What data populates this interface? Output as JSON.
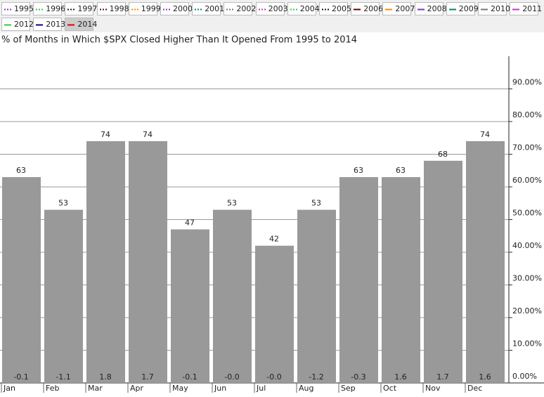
{
  "chart_data": {
    "type": "bar",
    "title": "% of Months in Which $SPX Closed Higher Than It Opened From 1995 to 2014",
    "legend_items": [
      {
        "label": "1995",
        "color": "#9933cc",
        "style": "dotted"
      },
      {
        "label": "1996",
        "color": "#33cc33",
        "style": "dotted"
      },
      {
        "label": "1997",
        "color": "#222222",
        "style": "dotted"
      },
      {
        "label": "1998",
        "color": "#660033",
        "style": "dotted"
      },
      {
        "label": "1999",
        "color": "#ff8800",
        "style": "dotted"
      },
      {
        "label": "2000",
        "color": "#9933cc",
        "style": "dotted"
      },
      {
        "label": "2001",
        "color": "#008080",
        "style": "dotted"
      },
      {
        "label": "2002",
        "color": "#777777",
        "style": "dotted"
      },
      {
        "label": "2003",
        "color": "#cc33cc",
        "style": "dotted"
      },
      {
        "label": "2004",
        "color": "#33cc33",
        "style": "dotted"
      },
      {
        "label": "2005",
        "color": "#111133",
        "style": "dotted"
      },
      {
        "label": "2006",
        "color": "#660000",
        "style": "solid"
      },
      {
        "label": "2007",
        "color": "#ff8800",
        "style": "solid"
      },
      {
        "label": "2008",
        "color": "#7733cc",
        "style": "solid"
      },
      {
        "label": "2009",
        "color": "#008866",
        "style": "solid"
      },
      {
        "label": "2010",
        "color": "#777777",
        "style": "solid"
      },
      {
        "label": "2011",
        "color": "#cc33cc",
        "style": "solid"
      },
      {
        "label": "2012",
        "color": "#33cc33",
        "style": "solid"
      },
      {
        "label": "2013",
        "color": "#000080",
        "style": "solid"
      },
      {
        "label": "2014",
        "color": "#dd0000",
        "style": "solid",
        "active": true
      }
    ],
    "categories": [
      "Jan",
      "Feb",
      "Mar",
      "Apr",
      "May",
      "Jun",
      "Jul",
      "Aug",
      "Sep",
      "Oct",
      "Nov",
      "Dec"
    ],
    "values": [
      63,
      53,
      74,
      74,
      47,
      53,
      42,
      53,
      63,
      63,
      68,
      74
    ],
    "bottom_labels": [
      "-0.1",
      "-1.1",
      "1.8",
      "1.7",
      "-0.1",
      "-0.0",
      "-0.0",
      "-1.2",
      "-0.3",
      "1.6",
      "1.7",
      "1.6"
    ],
    "color": "#999999",
    "ylim": [
      0,
      100
    ],
    "yticks": [
      {
        "value": 0,
        "label": "0.00%"
      },
      {
        "value": 10,
        "label": "10.00%"
      },
      {
        "value": 20,
        "label": "20.00%"
      },
      {
        "value": 30,
        "label": "30.00%"
      },
      {
        "value": 40,
        "label": "40.00%"
      },
      {
        "value": 50,
        "label": "50.00%"
      },
      {
        "value": 60,
        "label": "60.00%"
      },
      {
        "value": 70,
        "label": "70.00%"
      },
      {
        "value": 80,
        "label": "80.00%"
      },
      {
        "value": 90,
        "label": "90.00%"
      }
    ],
    "grid": true
  }
}
